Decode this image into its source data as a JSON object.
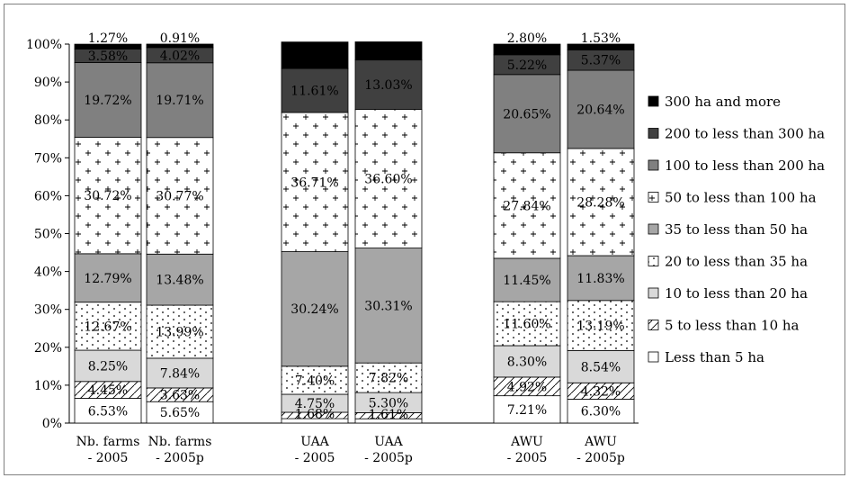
{
  "chart_data": {
    "type": "bar",
    "stacked": true,
    "normalized": true,
    "ylim": [
      0,
      100
    ],
    "yticks": [
      "0%",
      "10%",
      "20%",
      "30%",
      "40%",
      "50%",
      "60%",
      "70%",
      "80%",
      "90%",
      "100%"
    ],
    "categories": [
      [
        "Nb. farms",
        "- 2005"
      ],
      [
        "Nb. farms",
        "- 2005p"
      ],
      [
        "UAA",
        "- 2005"
      ],
      [
        "UAA",
        "- 2005p"
      ],
      [
        "AWU",
        "- 2005"
      ],
      [
        "AWU",
        "- 2005p"
      ]
    ],
    "legend_position": "right",
    "series": [
      {
        "name": "Less than 5 ha",
        "color": "#ffffff",
        "pattern": "none",
        "values": [
          6.53,
          5.65,
          1.17,
          1.14,
          7.21,
          6.3
        ],
        "labels": [
          "6.53%",
          "5.65%",
          "",
          "",
          "7.21%",
          "6.30%"
        ]
      },
      {
        "name": "5 to less than 10 ha",
        "color": "#ffffff",
        "pattern": "diagonal",
        "values": [
          4.45,
          3.63,
          1.68,
          1.61,
          4.92,
          4.32
        ],
        "labels": [
          "4.45%",
          "3.63%",
          "1.68%",
          "1.61%",
          "4.92%",
          "4.32%"
        ]
      },
      {
        "name": "10 to less than 20 ha",
        "color": "#d9d9d9",
        "pattern": "none",
        "values": [
          8.25,
          7.84,
          4.75,
          5.3,
          8.3,
          8.54
        ],
        "labels": [
          "8.25%",
          "7.84%",
          "4.75%",
          "5.30%",
          "8.30%",
          "8.54%"
        ]
      },
      {
        "name": "20 to less than 35 ha",
        "color": "#ffffff",
        "pattern": "dots",
        "values": [
          12.67,
          13.99,
          7.4,
          7.82,
          11.6,
          13.19
        ],
        "labels": [
          "12.67%",
          "13.99%",
          "7.40%",
          "7.82%",
          "11.60%",
          "13.19%"
        ]
      },
      {
        "name": "35 to less than 50 ha",
        "color": "#a6a6a6",
        "pattern": "none",
        "values": [
          12.79,
          13.48,
          30.24,
          30.31,
          11.45,
          11.83
        ],
        "labels": [
          "12.79%",
          "13.48%",
          "30.24%",
          "30.31%",
          "11.45%",
          "11.83%"
        ]
      },
      {
        "name": "50 to less than 100 ha",
        "color": "#ffffff",
        "pattern": "plus",
        "values": [
          30.72,
          30.77,
          36.71,
          36.6,
          27.84,
          28.28
        ],
        "labels": [
          "30.72%",
          "30.77%",
          "36.71%",
          "36.60%",
          "27.84%",
          "28.28%"
        ]
      },
      {
        "name": "100 to less than 200 ha",
        "color": "#808080",
        "pattern": "none",
        "values": [
          19.72,
          19.71,
          0,
          0,
          20.65,
          20.64
        ],
        "labels": [
          "19.72%",
          "19.71%",
          "",
          "",
          "20.65%",
          "20.64%"
        ]
      },
      {
        "name": "200 to less than 300 ha",
        "color": "#404040",
        "pattern": "none",
        "values": [
          3.58,
          4.02,
          11.61,
          13.03,
          5.22,
          5.37
        ],
        "labels": [
          "3.58%",
          "4.02%",
          "11.61%",
          "13.03%",
          "5.22%",
          "5.37%"
        ]
      },
      {
        "name": "300 ha and more",
        "color": "#000000",
        "pattern": "none",
        "values": [
          1.27,
          0.91,
          6.99,
          4.78,
          2.8,
          1.53
        ],
        "labels": [
          "1.27%",
          "0.91%",
          "6.99%",
          "4.78%",
          "2.80%",
          "1.53%"
        ]
      }
    ]
  }
}
